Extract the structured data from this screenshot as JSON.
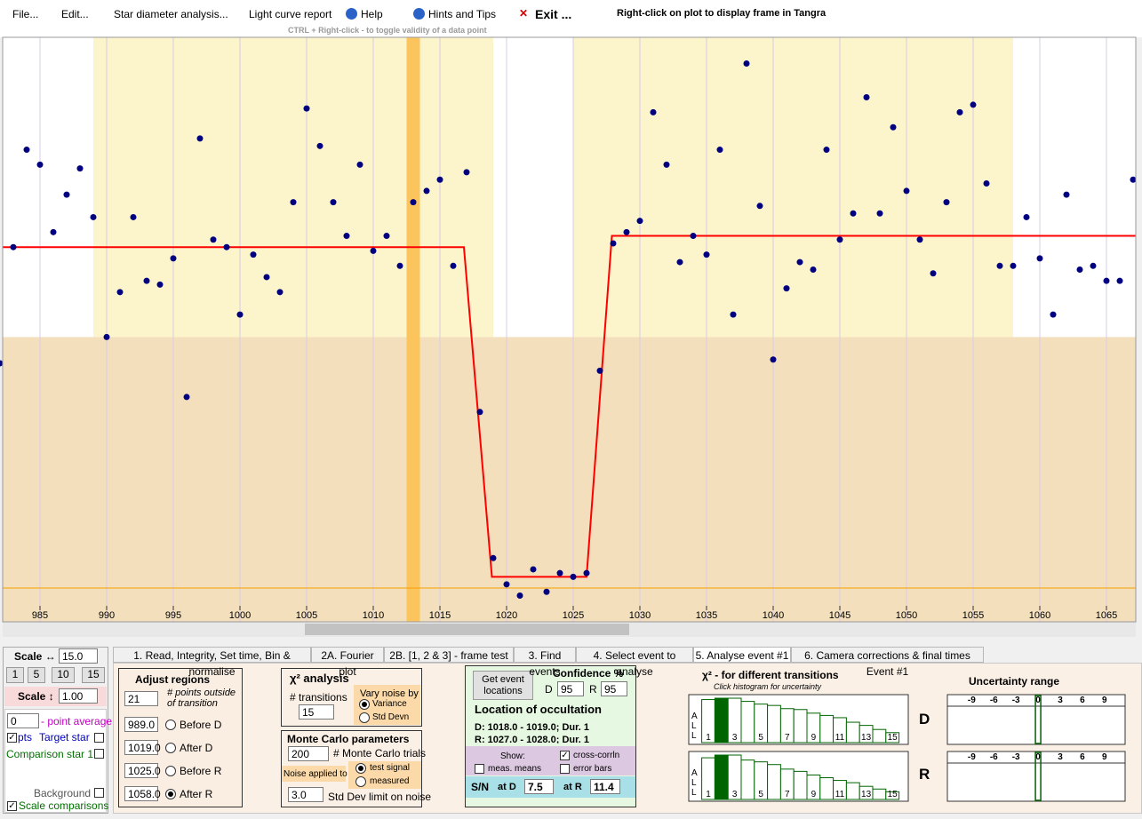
{
  "menu": {
    "items": [
      "File...",
      "Edit...",
      "Star diameter analysis...",
      "Light curve report",
      "Help",
      "Hints and Tips",
      "Exit ..."
    ],
    "hint": "Right-click on plot to display frame in Tangra",
    "subtitle": "CTRL + Right-click  -  to toggle validity of a data point"
  },
  "plot": {
    "type": "scatter",
    "color": "#000080",
    "x": [
      982,
      983,
      984,
      985,
      986,
      987,
      988,
      989,
      990,
      991,
      992,
      993,
      994,
      995,
      996,
      997,
      998,
      999,
      1000,
      1001,
      1002,
      1003,
      1004,
      1005,
      1006,
      1007,
      1008,
      1009,
      1010,
      1011,
      1012,
      1013,
      1014,
      1015,
      1016,
      1017,
      1018,
      1019,
      1020,
      1021,
      1022,
      1023,
      1024,
      1025,
      1026,
      1027,
      1028,
      1029,
      1030,
      1031,
      1032,
      1033,
      1034,
      1035,
      1036,
      1037,
      1038,
      1039,
      1040,
      1041,
      1042,
      1043,
      1044,
      1045,
      1046,
      1047,
      1048,
      1049,
      1050,
      1051,
      1052,
      1053,
      1054,
      1055,
      1056,
      1057,
      1058,
      1059,
      1060,
      1061,
      1062,
      1063,
      1064,
      1065,
      1066,
      1067
    ],
    "values": [
      0.69,
      1.0,
      1.26,
      1.22,
      1.04,
      1.14,
      1.21,
      1.08,
      0.76,
      0.88,
      1.08,
      0.91,
      0.9,
      0.97,
      0.6,
      1.29,
      1.02,
      1.0,
      0.82,
      0.98,
      0.92,
      0.88,
      1.12,
      1.37,
      1.27,
      1.12,
      1.03,
      1.22,
      0.99,
      1.03,
      0.95,
      1.12,
      1.15,
      1.18,
      0.95,
      1.2,
      0.56,
      0.17,
      0.1,
      0.07,
      0.14,
      0.08,
      0.13,
      0.12,
      0.13,
      0.67,
      1.01,
      1.04,
      1.07,
      1.36,
      1.22,
      0.96,
      1.03,
      0.98,
      1.26,
      0.82,
      1.49,
      1.11,
      0.7,
      0.89,
      0.96,
      0.94,
      1.26,
      1.02,
      1.09,
      1.4,
      1.09,
      1.32,
      1.15,
      1.02,
      0.93,
      1.12,
      1.36,
      1.38,
      1.17,
      0.95,
      0.95,
      1.08,
      0.97,
      0.82,
      1.14,
      0.94,
      0.95,
      0.91,
      0.91,
      1.18
    ],
    "xlim": [
      982.2,
      1067.2
    ],
    "ylim": [
      0,
      1.56
    ],
    "xticks": [
      985,
      990,
      995,
      1000,
      1005,
      1010,
      1015,
      1020,
      1025,
      1030,
      1035,
      1040,
      1045,
      1050,
      1055,
      1060,
      1065
    ],
    "grid": true,
    "model": {
      "color": "#ff0000",
      "x": [
        982.2,
        1016.8,
        1018.9,
        1026.0,
        1027.9,
        1067.2
      ],
      "values": [
        1.0,
        1.0,
        0.12,
        0.12,
        1.03,
        1.03
      ]
    },
    "selected_frame": [
      1012.5,
      1013.5
    ],
    "lower_zone_top": 0.76,
    "baseline_level": 0.09
  },
  "tabs": {
    "labels": [
      "1.  Read, Integrity, Set time, Bin & normalise",
      "2A. Fourier plot",
      "2B. [1, 2 & 3] - frame test",
      "3. Find events",
      "4. Select event to analyse",
      "5. Analyse event #1",
      "6. Camera corrections & final times Event #1"
    ],
    "active": 5
  },
  "left_panel": {
    "scale_h_label": "Scale ↔",
    "scale_h": "15.0",
    "buttons": [
      1,
      5,
      10,
      15
    ],
    "scale_v_label": "Scale ↕",
    "scale_v": "1.00",
    "point_average": 0,
    "point_average_label": "- point average",
    "pts": "pts",
    "target": "Target star",
    "comparison": "Comparison star 1",
    "background": "Background",
    "scale_comparisons": "Scale comparisons"
  },
  "adjust_regions": {
    "title": "Adjust regions",
    "points": 21,
    "points_label_1": "# points outside",
    "points_label_2": "of transition",
    "rows": [
      {
        "value": {
          "value": 989,
          "label": "989.0"
        },
        "label": "Before D"
      },
      {
        "value": {
          "value": 1019,
          "label": "1019.0"
        },
        "label": "After D"
      },
      {
        "value": {
          "value": 1025,
          "label": "1025.0"
        },
        "label": "Before R"
      },
      {
        "value": {
          "value": 1058,
          "label": "1058.0"
        },
        "label": "After R"
      }
    ]
  },
  "chi2": {
    "title": "χ² analysis",
    "transitions_label": "# transitions",
    "transitions": 15,
    "vary_label": "Vary noise by",
    "variance": "Variance",
    "std_devn": "Std Devn"
  },
  "monte_carlo": {
    "title": "Monte Carlo parameters",
    "trials": 200,
    "trials_label": "# Monte Carlo trials",
    "noise_label": "Noise applied to",
    "test_signal": "test signal",
    "measured": "measured",
    "limit": "3.0",
    "limit_label": "Std Dev limit on noise"
  },
  "event": {
    "button": "Get event locations",
    "confidence_title": "Confidence %",
    "d_label": "D",
    "d_conf": 95,
    "r_label": "R",
    "r_conf": 95,
    "location_title": "Location of occultation",
    "d_text": "D: 1018.0 - 1019.0; Dur. 1",
    "r_text": "R: 1027.0 - 1028.0; Dur. 1",
    "show": "Show:",
    "cross": "cross-corrln",
    "means": "meas. means",
    "error_bars": "error bars",
    "sn": "S/N",
    "at_d": "at D",
    "sn_d": 7.5,
    "at_r": "at R",
    "sn_r": 11.4
  },
  "histograms": {
    "title": "χ² - for different transitions",
    "subtitle": "Click histogram for uncertainty",
    "all_label": "ALL",
    "color": "#006400",
    "highlight": 1,
    "ylim": [
      0,
      100
    ],
    "categories": [
      "1",
      null,
      "3",
      null,
      "5",
      null,
      "7",
      null,
      "9",
      null,
      "11",
      null,
      "13",
      null,
      "15"
    ],
    "series": [
      {
        "name": "D",
        "values": [
          95,
          98,
          98,
          91,
          85,
          82,
          75,
          73,
          65,
          60,
          55,
          45,
          38,
          29,
          22
        ]
      },
      {
        "name": "R",
        "values": [
          92,
          98,
          98,
          87,
          83,
          77,
          67,
          62,
          54,
          48,
          42,
          37,
          29,
          23,
          17
        ]
      }
    ]
  },
  "uncertainty": {
    "title": "Uncertainty range",
    "xlim": [
      -12.3,
      11.8
    ],
    "xticks": [
      -9,
      -6,
      -3,
      0,
      3,
      6,
      9
    ],
    "centers": [
      0,
      0
    ]
  }
}
